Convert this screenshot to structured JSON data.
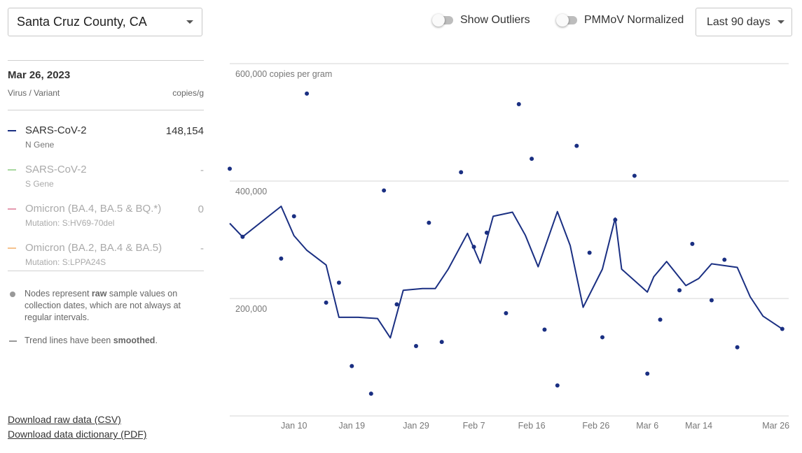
{
  "county": {
    "label": "Santa Cruz County, CA"
  },
  "toggles": [
    {
      "label": "Show Outliers"
    },
    {
      "label": "PMMoV Normalized"
    }
  ],
  "range": {
    "label": "Last 90 days"
  },
  "panel": {
    "date": "Mar 26, 2023",
    "col_left": "Virus / Variant",
    "col_right": "copies/g",
    "rows": [
      {
        "name": "SARS-CoV-2",
        "sub": "N Gene",
        "value": "148,154",
        "color": "#1a2f82"
      },
      {
        "name": "SARS-CoV-2",
        "sub": "S Gene",
        "value": "-",
        "color": "#a8d8a0"
      },
      {
        "name": "Omicron (BA.4, BA.5 & BQ.*)",
        "sub": "Mutation: S:HV69-70del",
        "value": "0",
        "color": "#e59ab0"
      },
      {
        "name": "Omicron (BA.2, BA.4 & BA.5)",
        "sub": "Mutation: S:LPPA24S",
        "value": "-",
        "color": "#f5c28e"
      }
    ],
    "note1_pre": "Nodes represent ",
    "note1_bold": "raw",
    "note1_post": " sample values on collection dates, which are not always at regular intervals.",
    "note2_pre": "Trend lines have been ",
    "note2_bold": "smoothed",
    "note2_post": "."
  },
  "links": {
    "csv": "Download raw data (CSV)",
    "pdf": "Download data dictionary (PDF)"
  },
  "chart_data": {
    "type": "line",
    "title": "",
    "ylabel": "copies per gram",
    "ylim": [
      0,
      600000
    ],
    "y_ticks": [
      {
        "value": 200000,
        "label": "200,000"
      },
      {
        "value": 400000,
        "label": "400,000"
      },
      {
        "value": 600000,
        "label": "600,000 copies per gram"
      }
    ],
    "x_ticks": [
      {
        "label": "Jan 10",
        "date": "2023-01-10"
      },
      {
        "label": "Jan 19",
        "date": "2023-01-19"
      },
      {
        "label": "Jan 29",
        "date": "2023-01-29"
      },
      {
        "label": "Feb 7",
        "date": "2023-02-07"
      },
      {
        "label": "Feb 16",
        "date": "2023-02-16"
      },
      {
        "label": "Feb 26",
        "date": "2023-02-26"
      },
      {
        "label": "Mar 6",
        "date": "2023-03-06"
      },
      {
        "label": "Mar 14",
        "date": "2023-03-14"
      },
      {
        "label": "Mar 26",
        "date": "2023-03-26"
      }
    ],
    "xlim": [
      "2022-12-31",
      "2023-03-28"
    ],
    "series": [
      {
        "kind": "trend",
        "color": "#1a2f82",
        "points": [
          [
            "2022-12-31",
            328000
          ],
          [
            "2023-01-02",
            305000
          ],
          [
            "2023-01-08",
            357000
          ],
          [
            "2023-01-10",
            307000
          ],
          [
            "2023-01-12",
            282000
          ],
          [
            "2023-01-15",
            257000
          ],
          [
            "2023-01-17",
            168000
          ],
          [
            "2023-01-20",
            168000
          ],
          [
            "2023-01-23",
            166000
          ],
          [
            "2023-01-25",
            133000
          ],
          [
            "2023-01-27",
            214000
          ],
          [
            "2023-01-30",
            217000
          ],
          [
            "2023-02-01",
            217000
          ],
          [
            "2023-02-03",
            250000
          ],
          [
            "2023-02-06",
            311000
          ],
          [
            "2023-02-08",
            260000
          ],
          [
            "2023-02-10",
            340000
          ],
          [
            "2023-02-13",
            347000
          ],
          [
            "2023-02-15",
            308000
          ],
          [
            "2023-02-17",
            254000
          ],
          [
            "2023-02-20",
            348000
          ],
          [
            "2023-02-22",
            290000
          ],
          [
            "2023-02-24",
            185000
          ],
          [
            "2023-02-27",
            250000
          ],
          [
            "2023-02-29",
            337000
          ],
          [
            "2023-03-02",
            250000
          ],
          [
            "2023-03-06",
            211000
          ],
          [
            "2023-03-07",
            237000
          ],
          [
            "2023-03-09",
            263000
          ],
          [
            "2023-03-12",
            222000
          ],
          [
            "2023-03-14",
            234000
          ],
          [
            "2023-03-16",
            259000
          ],
          [
            "2023-03-20",
            253000
          ],
          [
            "2023-03-22",
            203000
          ],
          [
            "2023-03-24",
            170000
          ],
          [
            "2023-03-27",
            148154
          ]
        ]
      },
      {
        "kind": "samples",
        "color": "#1a2f82",
        "points": [
          [
            "2022-12-31",
            421000
          ],
          [
            "2023-01-02",
            305000
          ],
          [
            "2023-01-08",
            268000
          ],
          [
            "2023-01-10",
            340000
          ],
          [
            "2023-01-12",
            549000
          ],
          [
            "2023-01-15",
            193000
          ],
          [
            "2023-01-17",
            227000
          ],
          [
            "2023-01-19",
            85000
          ],
          [
            "2023-01-22",
            38000
          ],
          [
            "2023-01-24",
            384000
          ],
          [
            "2023-01-26",
            190000
          ],
          [
            "2023-01-29",
            119000
          ],
          [
            "2023-01-31",
            329000
          ],
          [
            "2023-02-02",
            126000
          ],
          [
            "2023-02-05",
            415000
          ],
          [
            "2023-02-07",
            288000
          ],
          [
            "2023-02-09",
            312000
          ],
          [
            "2023-02-12",
            175000
          ],
          [
            "2023-02-14",
            531000
          ],
          [
            "2023-02-16",
            438000
          ],
          [
            "2023-02-18",
            147000
          ],
          [
            "2023-02-20",
            52000
          ],
          [
            "2023-02-23",
            460000
          ],
          [
            "2023-02-25",
            278000
          ],
          [
            "2023-02-27",
            134000
          ],
          [
            "2023-03-01",
            334000
          ],
          [
            "2023-03-04",
            409000
          ],
          [
            "2023-03-06",
            72000
          ],
          [
            "2023-03-08",
            164000
          ],
          [
            "2023-03-11",
            214000
          ],
          [
            "2023-03-13",
            293000
          ],
          [
            "2023-03-16",
            197000
          ],
          [
            "2023-03-18",
            266000
          ],
          [
            "2023-03-20",
            117000
          ],
          [
            "2023-03-27",
            148154
          ]
        ]
      }
    ],
    "grid": true
  }
}
